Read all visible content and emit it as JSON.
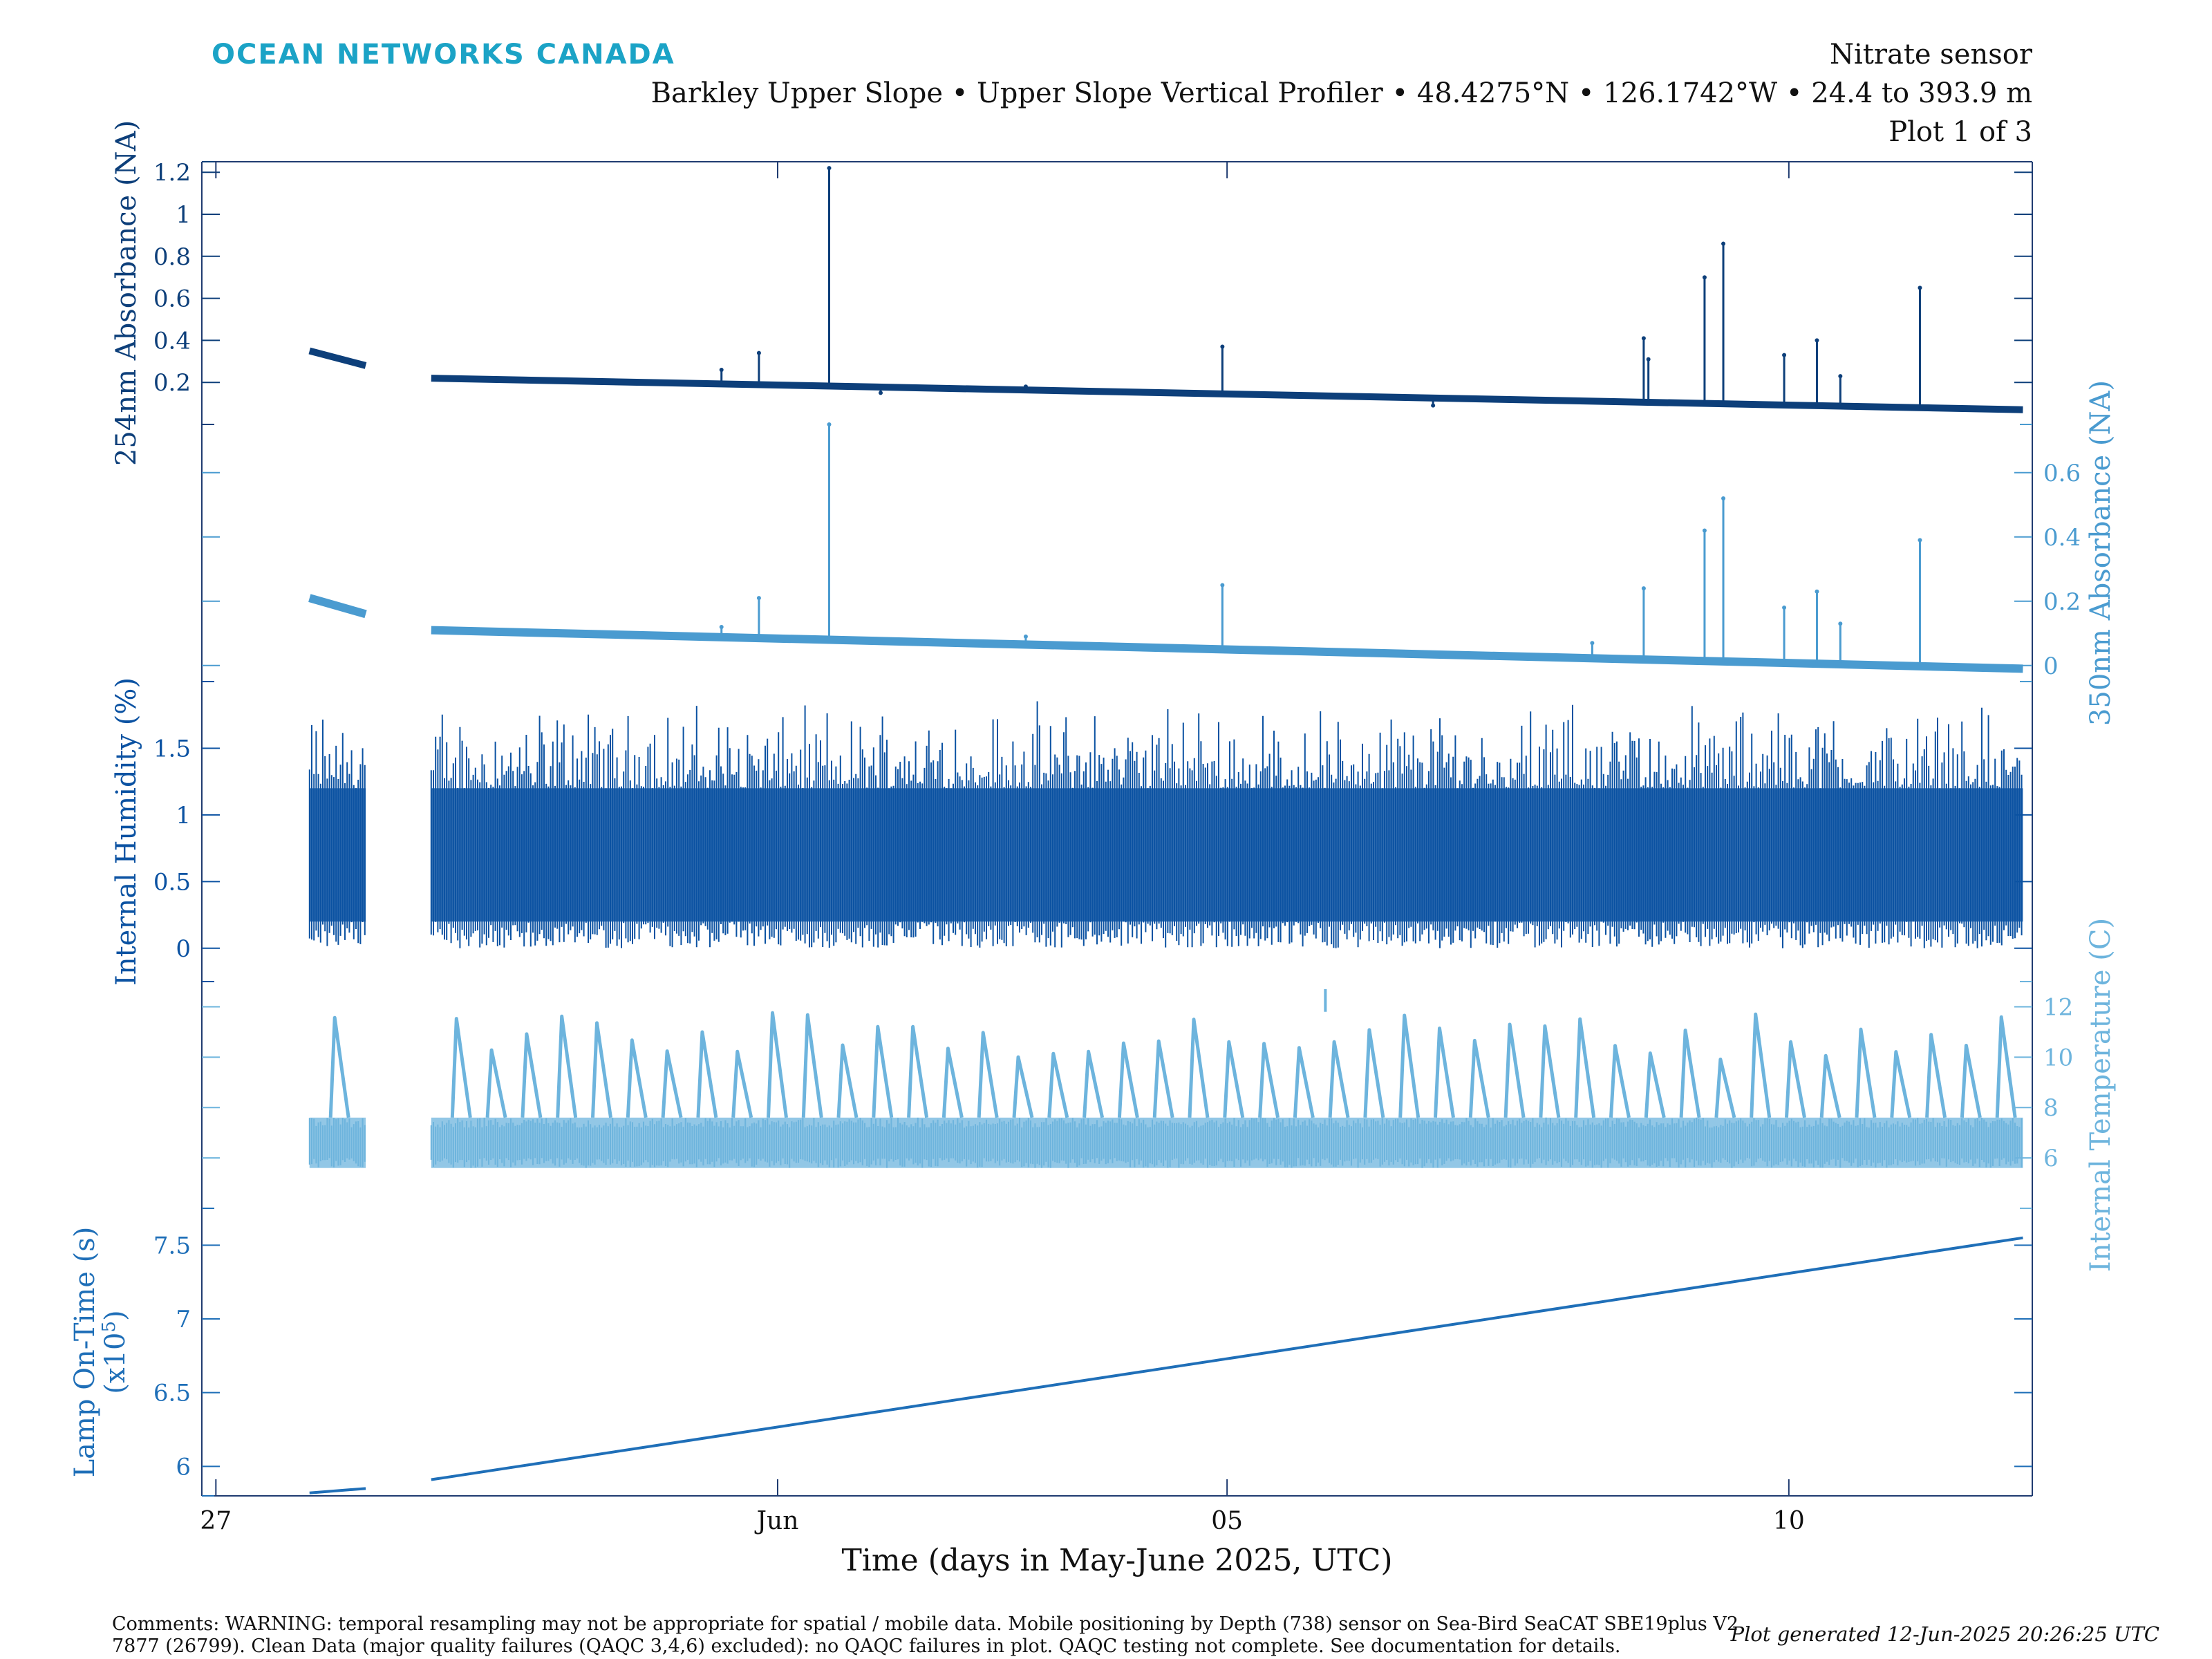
{
  "header": {
    "brand": "OCEAN NETWORKS CANADA",
    "title": "Nitrate sensor",
    "subtitle": "Barkley Upper Slope • Upper Slope Vertical Profiler • 48.4275°N • 126.1742°W • 24.4 to 393.9 m",
    "plot_index": "Plot 1 of 3"
  },
  "colors": {
    "brand": "#1ba3c6",
    "abs254": "#0d3f7a",
    "abs350": "#4a9bd0",
    "humidity": "#0b52a2",
    "temperature": "#6db4dd",
    "lamp": "#1f6fb8",
    "axis": "#1f3b70"
  },
  "chart_data": {
    "type": "line",
    "xlabel": "Time (days in May-June 2025, UTC)",
    "xlim": [
      "2025-05-26T21:00",
      "2025-06-12T04:00"
    ],
    "xticks": [
      {
        "date": "2025-05-27",
        "label": "27"
      },
      {
        "date": "2025-06-01",
        "label": "Jun"
      },
      {
        "date": "2025-06-05",
        "label": "05"
      },
      {
        "date": "2025-06-10",
        "label": "10"
      }
    ],
    "series": [
      {
        "name": "254nm Absorbance (NA)",
        "key": "abs254",
        "ylabel": "254nm Absorbance (NA)",
        "ylim": [
          0,
          1.25
        ],
        "yticks": [
          0.2,
          0.4,
          0.6,
          0.8,
          1,
          1.2
        ],
        "ytick_labels": [
          "0.2",
          "0.4",
          "0.6",
          "0.8",
          "1",
          "1.2"
        ],
        "segments": [
          {
            "x": [
              "2025-05-27T20:00",
              "2025-05-28T08:00"
            ],
            "y": [
              0.35,
              0.28
            ]
          },
          {
            "x": [
              "2025-05-28T22:00",
              "2025-06-12T02:00"
            ],
            "y": [
              0.22,
              0.07
            ]
          }
        ],
        "spikes": [
          {
            "x": "2025-05-30T07:00",
            "y": 0.21
          },
          {
            "x": "2025-05-31T12:00",
            "y": 0.26
          },
          {
            "x": "2025-05-31T20:00",
            "y": 0.34
          },
          {
            "x": "2025-06-01T11:00",
            "y": 1.22
          },
          {
            "x": "2025-06-01T22:00",
            "y": 0.15
          },
          {
            "x": "2025-06-03T05:00",
            "y": 0.18
          },
          {
            "x": "2025-06-04T02:00",
            "y": 0.15
          },
          {
            "x": "2025-06-04T23:00",
            "y": 0.37
          },
          {
            "x": "2025-06-06T20:00",
            "y": 0.09
          },
          {
            "x": "2025-06-08T06:00",
            "y": 0.11
          },
          {
            "x": "2025-06-08T17:00",
            "y": 0.41
          },
          {
            "x": "2025-06-08T18:00",
            "y": 0.31
          },
          {
            "x": "2025-06-09T06:00",
            "y": 0.7
          },
          {
            "x": "2025-06-09T10:00",
            "y": 0.86
          },
          {
            "x": "2025-06-09T23:00",
            "y": 0.33
          },
          {
            "x": "2025-06-10T06:00",
            "y": 0.4
          },
          {
            "x": "2025-06-10T11:00",
            "y": 0.23
          },
          {
            "x": "2025-06-11T04:00",
            "y": 0.65
          }
        ]
      },
      {
        "name": "350nm Absorbance (NA)",
        "key": "abs350",
        "ylabel": "350nm Absorbance (NA)",
        "ylim": [
          -0.05,
          0.75
        ],
        "yticks": [
          0,
          0.2,
          0.4,
          0.6
        ],
        "ytick_labels": [
          "0",
          "0.2",
          "0.4",
          "0.6"
        ],
        "segments": [
          {
            "x": [
              "2025-05-27T20:00",
              "2025-05-28T08:00"
            ],
            "y": [
              0.21,
              0.16
            ]
          },
          {
            "x": [
              "2025-05-28T22:00",
              "2025-06-12T02:00"
            ],
            "y": [
              0.11,
              -0.01
            ]
          }
        ],
        "spikes": [
          {
            "x": "2025-05-31T12:00",
            "y": 0.12
          },
          {
            "x": "2025-05-31T20:00",
            "y": 0.21
          },
          {
            "x": "2025-06-01T11:00",
            "y": 0.75
          },
          {
            "x": "2025-06-03T05:00",
            "y": 0.09
          },
          {
            "x": "2025-06-04T23:00",
            "y": 0.25
          },
          {
            "x": "2025-06-08T06:00",
            "y": 0.07
          },
          {
            "x": "2025-06-08T17:00",
            "y": 0.24
          },
          {
            "x": "2025-06-09T06:00",
            "y": 0.42
          },
          {
            "x": "2025-06-09T10:00",
            "y": 0.52
          },
          {
            "x": "2025-06-09T23:00",
            "y": 0.18
          },
          {
            "x": "2025-06-10T06:00",
            "y": 0.23
          },
          {
            "x": "2025-06-10T11:00",
            "y": 0.13
          },
          {
            "x": "2025-06-11T04:00",
            "y": 0.39
          }
        ]
      },
      {
        "name": "Internal Humidity (%)",
        "key": "humidity",
        "ylabel": "Internal Humidity (%)",
        "ylim": [
          -0.25,
          2.0
        ],
        "yticks": [
          0,
          0.5,
          1,
          1.5
        ],
        "ytick_labels": [
          "0",
          "0.5",
          "1",
          "1.5"
        ],
        "band": [
          0.2,
          1.2
        ],
        "range": [
          0.0,
          1.9
        ],
        "segments": [
          {
            "x": [
              "2025-05-27T20:00",
              "2025-05-28T08:00"
            ]
          },
          {
            "x": [
              "2025-05-28T22:00",
              "2025-06-12T02:00"
            ]
          }
        ]
      },
      {
        "name": "Internal Temperature (C)",
        "key": "temperature",
        "ylabel": "Internal Temperature (C)",
        "ylim": [
          4.0,
          13.0
        ],
        "yticks": [
          6,
          8,
          10,
          12
        ],
        "ytick_labels": [
          "6",
          "8",
          "10",
          "12"
        ],
        "band": [
          5.6,
          7.6
        ],
        "peak_range": [
          7.6,
          11.8
        ],
        "outlier": {
          "x": "2025-06-05T21:00",
          "y": 12.7
        },
        "segments": [
          {
            "x": [
              "2025-05-27T20:00",
              "2025-05-28T08:00"
            ]
          },
          {
            "x": [
              "2025-05-28T22:00",
              "2025-06-12T02:00"
            ]
          }
        ]
      },
      {
        "name": "Lamp On-Time (s) (x10^5)",
        "key": "lamp",
        "ylabel": "Lamp On-Time (s)",
        "ylabel_line2": "(x10",
        "ylabel_sup": "5",
        "ylabel_close": ")",
        "ylim": [
          5.8,
          7.75
        ],
        "yticks": [
          6,
          6.5,
          7,
          7.5
        ],
        "ytick_labels": [
          "6",
          "6.5",
          "7",
          "7.5"
        ],
        "segments": [
          {
            "x": [
              "2025-05-27T20:00",
              "2025-05-28T08:00"
            ],
            "y": [
              5.82,
              5.85
            ]
          },
          {
            "x": [
              "2025-05-28T22:00",
              "2025-06-12T02:00"
            ],
            "y": [
              5.91,
              7.55
            ]
          }
        ]
      }
    ]
  },
  "footer": {
    "comments_line1": "Comments: WARNING: temporal resampling may not be appropriate for spatial / mobile data. Mobile positioning by Depth (738) sensor on Sea-Bird SeaCAT SBE19plus V2",
    "comments_line2": "7877 (26799). Clean Data (major quality failures (QAQC 3,4,6) excluded): no QAQC failures in plot. QAQC testing not complete. See documentation for details.",
    "generated": "Plot generated 12-Jun-2025 20:26:25 UTC"
  }
}
